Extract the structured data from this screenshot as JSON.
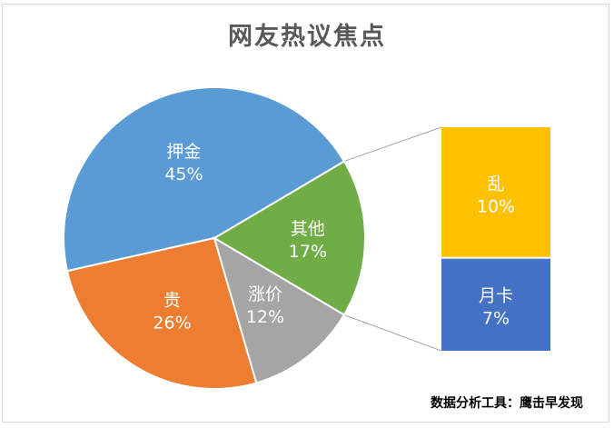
{
  "chart_data": {
    "type": "pie",
    "title": "网友热议焦点",
    "slices": [
      {
        "label": "押金",
        "value": 45,
        "display": "45%",
        "color": "#5b9bd5"
      },
      {
        "label": "贵",
        "value": 26,
        "display": "26%",
        "color": "#ed7d31"
      },
      {
        "label": "涨价",
        "value": 12,
        "display": "12%",
        "color": "#a5a5a5"
      },
      {
        "label": "其他",
        "value": 17,
        "display": "17%",
        "color": "#70ad47"
      }
    ],
    "breakdown_of": "其他",
    "breakdown": [
      {
        "label": "乱",
        "value": 10,
        "display": "10%",
        "color": "#ffc000"
      },
      {
        "label": "月卡",
        "value": 7,
        "display": "7%",
        "color": "#4472c4"
      }
    ]
  },
  "footer": {
    "source": "数据分析工具：鹰击早发现"
  }
}
